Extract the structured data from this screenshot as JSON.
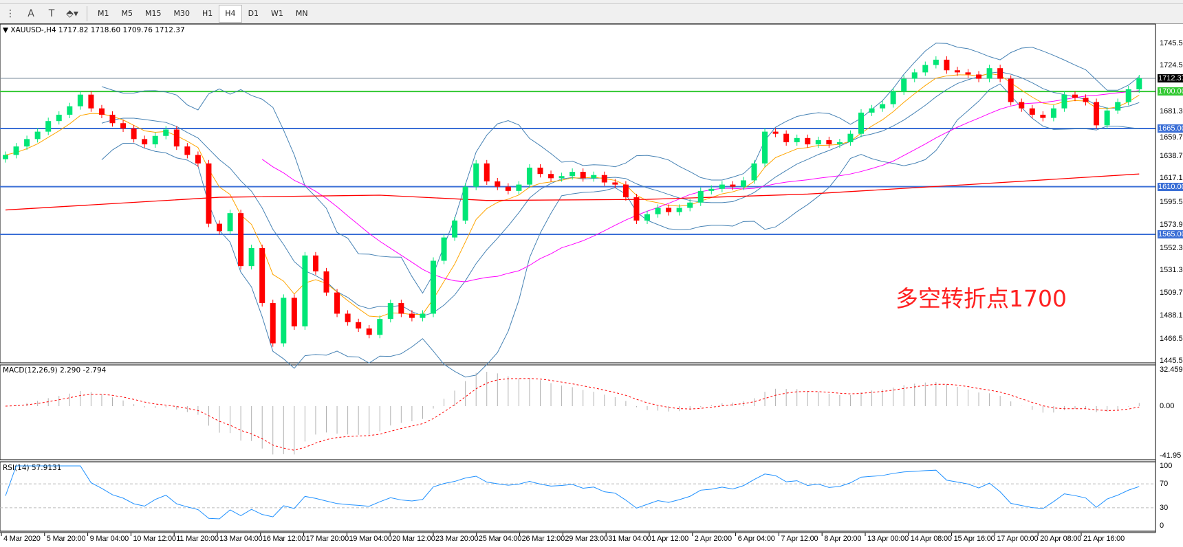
{
  "toolbar": {
    "timeframes": [
      "M1",
      "M5",
      "M15",
      "M30",
      "H1",
      "H4",
      "D1",
      "W1",
      "MN"
    ],
    "active_timeframe": "H4",
    "icons": [
      "fibo-icon",
      "text-icon",
      "text-label-icon",
      "arrows-icon"
    ]
  },
  "chart_header": {
    "symbol": "XAUUSD-,H4",
    "ohlc": "1717.82 1718.60 1709.76 1712.37"
  },
  "annotation": "多空转折点1700",
  "colors": {
    "bull": "#00e676",
    "bear": "#ff0000",
    "bands": "#4682b4",
    "fast_ma": "#ffa500",
    "mid_ma": "#ff00ff",
    "long_ma": "#ff0000",
    "level_blue": "#3b6fd6",
    "level_green": "#32c832",
    "macd_hist": "#b0b0b0",
    "macd_signal": "#ff0000",
    "rsi": "#1e90ff"
  },
  "price_axis": {
    "ticks": [
      "1745.50",
      "1724.50",
      "1681.30",
      "1659.70",
      "1638.70",
      "1617.10",
      "1595.50",
      "1573.90",
      "1552.30",
      "1531.30",
      "1509.70",
      "1488.10",
      "1466.50",
      "1445.50"
    ],
    "current_price": "1712.37",
    "levels": [
      {
        "label": "1700.00",
        "color": "green"
      },
      {
        "label": "1665.00",
        "color": "blue"
      },
      {
        "label": "1610.00",
        "color": "blue"
      },
      {
        "label": "1565.00",
        "color": "blue"
      }
    ]
  },
  "macd": {
    "label": "MACD(12,26,9) 2.290 -2.794",
    "ticks": [
      "32.459",
      "0.00",
      "-41.95"
    ]
  },
  "rsi": {
    "label": "RSI(14) 57.9131",
    "ticks": [
      "100",
      "70",
      "30",
      "0"
    ]
  },
  "time_axis": [
    "4 Mar 2020",
    "5 Mar 20:00",
    "9 Mar 04:00",
    "10 Mar 12:00",
    "11 Mar 20:00",
    "13 Mar 04:00",
    "16 Mar 12:00",
    "17 Mar 20:00",
    "19 Mar 04:00",
    "20 Mar 12:00",
    "23 Mar 20:00",
    "25 Mar 04:00",
    "26 Mar 12:00",
    "29 Mar 23:00",
    "31 Mar 04:00",
    "1 Apr 12:00",
    "2 Apr 20:00",
    "6 Apr 04:00",
    "7 Apr 12:00",
    "8 Apr 20:00",
    "13 Apr 00:00",
    "14 Apr 08:00",
    "15 Apr 16:00",
    "17 Apr 00:00",
    "20 Apr 08:00",
    "21 Apr 16:00"
  ],
  "chart_data": {
    "type": "candlestick",
    "ylim": [
      1445.5,
      1745.5
    ],
    "macd_ylim": [
      -41.95,
      32.459
    ],
    "rsi_ylim": [
      0,
      100
    ],
    "rsi_levels": [
      30,
      70
    ],
    "first_open": 1636,
    "closes": [
      1640,
      1648,
      1655,
      1662,
      1672,
      1678,
      1686,
      1697,
      1684,
      1678,
      1670,
      1665,
      1655,
      1650,
      1658,
      1664,
      1648,
      1640,
      1632,
      1575,
      1568,
      1585,
      1535,
      1552,
      1500,
      1462,
      1505,
      1478,
      1545,
      1530,
      1510,
      1490,
      1482,
      1476,
      1470,
      1485,
      1500,
      1490,
      1486,
      1490,
      1540,
      1562,
      1578,
      1610,
      1632,
      1615,
      1610,
      1606,
      1612,
      1628,
      1622,
      1618,
      1620,
      1624,
      1618,
      1621,
      1614,
      1612,
      1600,
      1578,
      1584,
      1590,
      1586,
      1590,
      1595,
      1606,
      1608,
      1612,
      1610,
      1616,
      1632,
      1662,
      1660,
      1652,
      1656,
      1650,
      1654,
      1650,
      1652,
      1660,
      1680,
      1684,
      1688,
      1700,
      1712,
      1718,
      1725,
      1730,
      1720,
      1718,
      1716,
      1712,
      1722,
      1712,
      1690,
      1684,
      1678,
      1675,
      1684,
      1697,
      1694,
      1690,
      1668,
      1682,
      1690,
      1702,
      1712.37
    ],
    "long_ma": [
      [
        0,
        1588
      ],
      [
        20,
        1600
      ],
      [
        35,
        1602
      ],
      [
        45,
        1597
      ],
      [
        60,
        1598
      ],
      [
        75,
        1603
      ],
      [
        90,
        1612
      ],
      [
        106,
        1622
      ]
    ],
    "horizontal_levels": [
      1700,
      1665,
      1610,
      1565
    ],
    "current_price": 1712.37
  }
}
